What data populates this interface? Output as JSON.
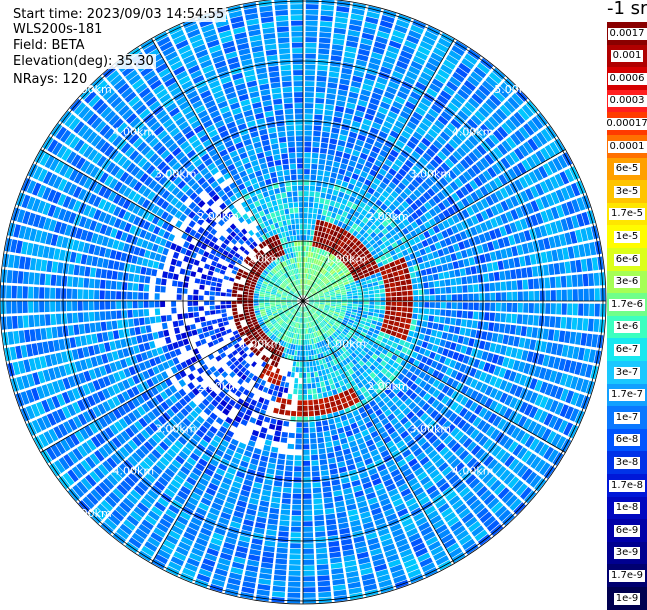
{
  "header": {
    "start_time": "Start time: 2023/09/03 14:54:55",
    "instrument": "WLS200s-181",
    "field": "Field: BETA",
    "elevation": "Elevation(deg): 35.30",
    "nrays": "NRays: 120"
  },
  "colorbar": {
    "unit": "-1 sr",
    "labels": [
      "0.0017",
      "0.001",
      "0.0006",
      "0.0003",
      "0.00017",
      "0.0001",
      "6e-5",
      "3e-5",
      "1.7e-5",
      "1e-5",
      "6e-6",
      "3e-6",
      "1.7e-6",
      "1e-6",
      "6e-7",
      "3e-7",
      "1.7e-7",
      "1e-7",
      "6e-8",
      "3e-8",
      "1.7e-8",
      "1e-8",
      "6e-9",
      "3e-9",
      "1.7e-9",
      "1e-9"
    ],
    "colors": [
      "#8a0000",
      "#b00000",
      "#d60000",
      "#ff1f1f",
      "#ff3b00",
      "#ff7000",
      "#ffa000",
      "#ffc400",
      "#ffe600",
      "#fffc00",
      "#dcff1a",
      "#a6ff55",
      "#70ff8a",
      "#3cffc0",
      "#18e8f0",
      "#1ac8ff",
      "#12a0ff",
      "#0a78ff",
      "#0055ff",
      "#0033e8",
      "#0018d8",
      "#0008c0",
      "#0000a8",
      "#000090",
      "#000070",
      "#000050"
    ]
  },
  "chart_data": {
    "type": "ppi",
    "title": "",
    "field": "BETA",
    "unit": "-1 sr",
    "rays": 120,
    "elevation_deg": 35.3,
    "range_rings": [
      "1.00km",
      "2.00km",
      "3.00km",
      "4.00km",
      "5.00km"
    ],
    "spoke_angles_deg": [
      0,
      30,
      60,
      90,
      120,
      150,
      180,
      210,
      240,
      270,
      300,
      330
    ],
    "scale": "log",
    "range_value": [
      1e-09,
      0.0017
    ]
  }
}
